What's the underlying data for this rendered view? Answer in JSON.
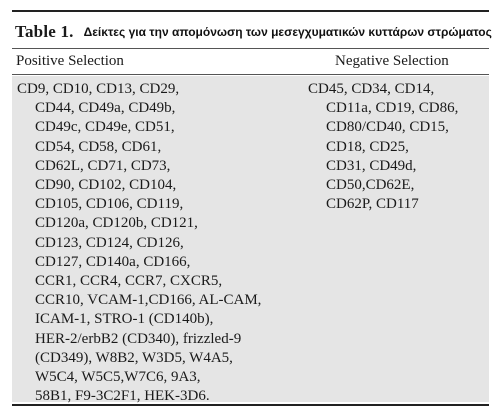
{
  "table": {
    "label": "Table 1.",
    "caption": "Δείκτες για την απομόνωση των μεσεγχυματικών κυττάρων στρώματος"
  },
  "columns": {
    "positive_header": "Positive Selection",
    "negative_header": "Negative Selection"
  },
  "positive_lines": [
    "CD9, CD10, CD13, CD29,",
    "CD44, CD49a, CD49b,",
    "CD49c, CD49e, CD51,",
    "CD54, CD58, CD61,",
    "CD62L, CD71, CD73,",
    "CD90, CD102, CD104,",
    "CD105, CD106, CD119,",
    "CD120a, CD120b, CD121,",
    "CD123, CD124, CD126,",
    "CD127, CD140a, CD166,",
    "CCR1, CCR4, CCR7, CXCR5,",
    "CCR10, VCAM-1,CD166, AL-CAM,",
    "ICAM-1, STRO-1 (CD140b),",
    "HER-2/erbB2 (CD340), frizzled-9",
    "(CD349), W8B2, W3D5, W4A5,",
    "W5C4, W5C5,W7C6, 9A3,",
    "58B1, F9-3C2F1, HEK-3D6."
  ],
  "negative_lines": [
    "CD45, CD34, CD14,",
    "CD11a, CD19, CD86,",
    "CD80/CD40, CD15,",
    "CD18, CD25,",
    "CD31, CD49d,",
    "CD50,CD62E,",
    "CD62P, CD117"
  ]
}
